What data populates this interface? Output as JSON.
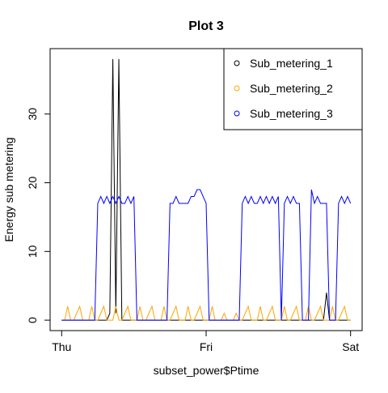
{
  "chart_data": {
    "type": "line",
    "title": "Plot 3",
    "xlabel": "subset_power$Ptime",
    "ylabel": "Energy sub metering",
    "x": [
      0,
      0.5,
      1,
      1.5,
      2,
      2.5,
      3,
      3.5,
      4,
      4.5,
      5,
      5.5,
      6,
      6.5,
      7,
      7.5,
      8,
      8.5,
      9,
      9.5,
      10,
      10.5,
      11,
      11.5,
      12,
      12.5,
      13,
      13.5,
      14,
      14.5,
      15,
      15.5,
      16,
      16.5,
      17,
      17.5,
      18,
      18.5,
      19,
      19.5,
      20,
      20.5,
      21,
      21.5,
      22,
      22.5,
      23,
      23.5,
      24,
      24.5,
      25,
      25.5,
      26,
      26.5,
      27,
      27.5,
      28,
      28.5,
      29,
      29.5,
      30,
      30.5,
      31,
      31.5,
      32,
      32.5,
      33,
      33.5,
      34,
      34.5,
      35,
      35.5,
      36,
      36.5,
      37,
      37.5,
      38,
      38.5,
      39,
      39.5,
      40,
      40.5,
      41,
      41.5,
      42,
      42.5,
      43,
      43.5,
      44,
      44.5,
      45,
      45.5,
      46,
      46.5,
      47,
      47.5,
      48
    ],
    "series": [
      {
        "name": "Sub_metering_1",
        "color": "#000000",
        "values": [
          0,
          0,
          0,
          0,
          0,
          0,
          0,
          0,
          0,
          0,
          0,
          0,
          0,
          0,
          0,
          0,
          1,
          38,
          1,
          38,
          0,
          0,
          0,
          0,
          0,
          0,
          0,
          0,
          0,
          0,
          0,
          0,
          0,
          0,
          0,
          0,
          0,
          0,
          0,
          0,
          0,
          0,
          0,
          0,
          0,
          0,
          0,
          0,
          0,
          0,
          0,
          0,
          0,
          0,
          0,
          0,
          0,
          0,
          0,
          0,
          0,
          0,
          0,
          0,
          0,
          0,
          0,
          0,
          0,
          0,
          0,
          0,
          0,
          0,
          0,
          0,
          0,
          0,
          0,
          0,
          0,
          0,
          0,
          0,
          0,
          0,
          0,
          0,
          4,
          0,
          0,
          0,
          0,
          0,
          0,
          0,
          0
        ]
      },
      {
        "name": "Sub_metering_2",
        "color": "#ffa500",
        "values": [
          0,
          0,
          2,
          0,
          0,
          1,
          2,
          0,
          0,
          0,
          2,
          0,
          0,
          1,
          2,
          0,
          0,
          0,
          2,
          0,
          0,
          1,
          2,
          0,
          0,
          0,
          2,
          0,
          0,
          1,
          2,
          0,
          0,
          0,
          2,
          0,
          0,
          1,
          2,
          0,
          0,
          0,
          2,
          0,
          0,
          1,
          2,
          0,
          0,
          0,
          2,
          0,
          0,
          0,
          1,
          0,
          0,
          0,
          1,
          0,
          0,
          1,
          2,
          0,
          0,
          0,
          2,
          0,
          0,
          1,
          2,
          0,
          0,
          0,
          2,
          0,
          0,
          1,
          2,
          0,
          0,
          0,
          2,
          0,
          0,
          1,
          2,
          0,
          0,
          0,
          2,
          0,
          0,
          1,
          2,
          0,
          0
        ]
      },
      {
        "name": "Sub_metering_3",
        "color": "#0000ff",
        "values": [
          0,
          0,
          0,
          0,
          0,
          0,
          0,
          0,
          0,
          0,
          0,
          0,
          17,
          18,
          17,
          18,
          17,
          18,
          17,
          18,
          17,
          17,
          18,
          17,
          18,
          0,
          0,
          0,
          0,
          0,
          0,
          0,
          0,
          0,
          0,
          0,
          17,
          17,
          18,
          17,
          17,
          17,
          17,
          18,
          18,
          19,
          19,
          18,
          17,
          0,
          0,
          0,
          0,
          0,
          0,
          0,
          0,
          0,
          0,
          0,
          17,
          18,
          17,
          18,
          17,
          17,
          18,
          17,
          18,
          17,
          18,
          17,
          18,
          0,
          17,
          18,
          17,
          18,
          17,
          17,
          0,
          0,
          0,
          19,
          17,
          18,
          17,
          17,
          17,
          0,
          0,
          0,
          17,
          18,
          17,
          18,
          17
        ]
      }
    ],
    "xlim": [
      -1.92,
      49.92
    ],
    "xticks": [
      {
        "value": 0,
        "label": "Thu"
      },
      {
        "value": 24,
        "label": "Fri"
      },
      {
        "value": 48,
        "label": "Sat"
      }
    ],
    "ylim": [
      -1.52,
      39.52
    ],
    "yticks": [
      0,
      10,
      20,
      30
    ],
    "legend": "top-right"
  }
}
